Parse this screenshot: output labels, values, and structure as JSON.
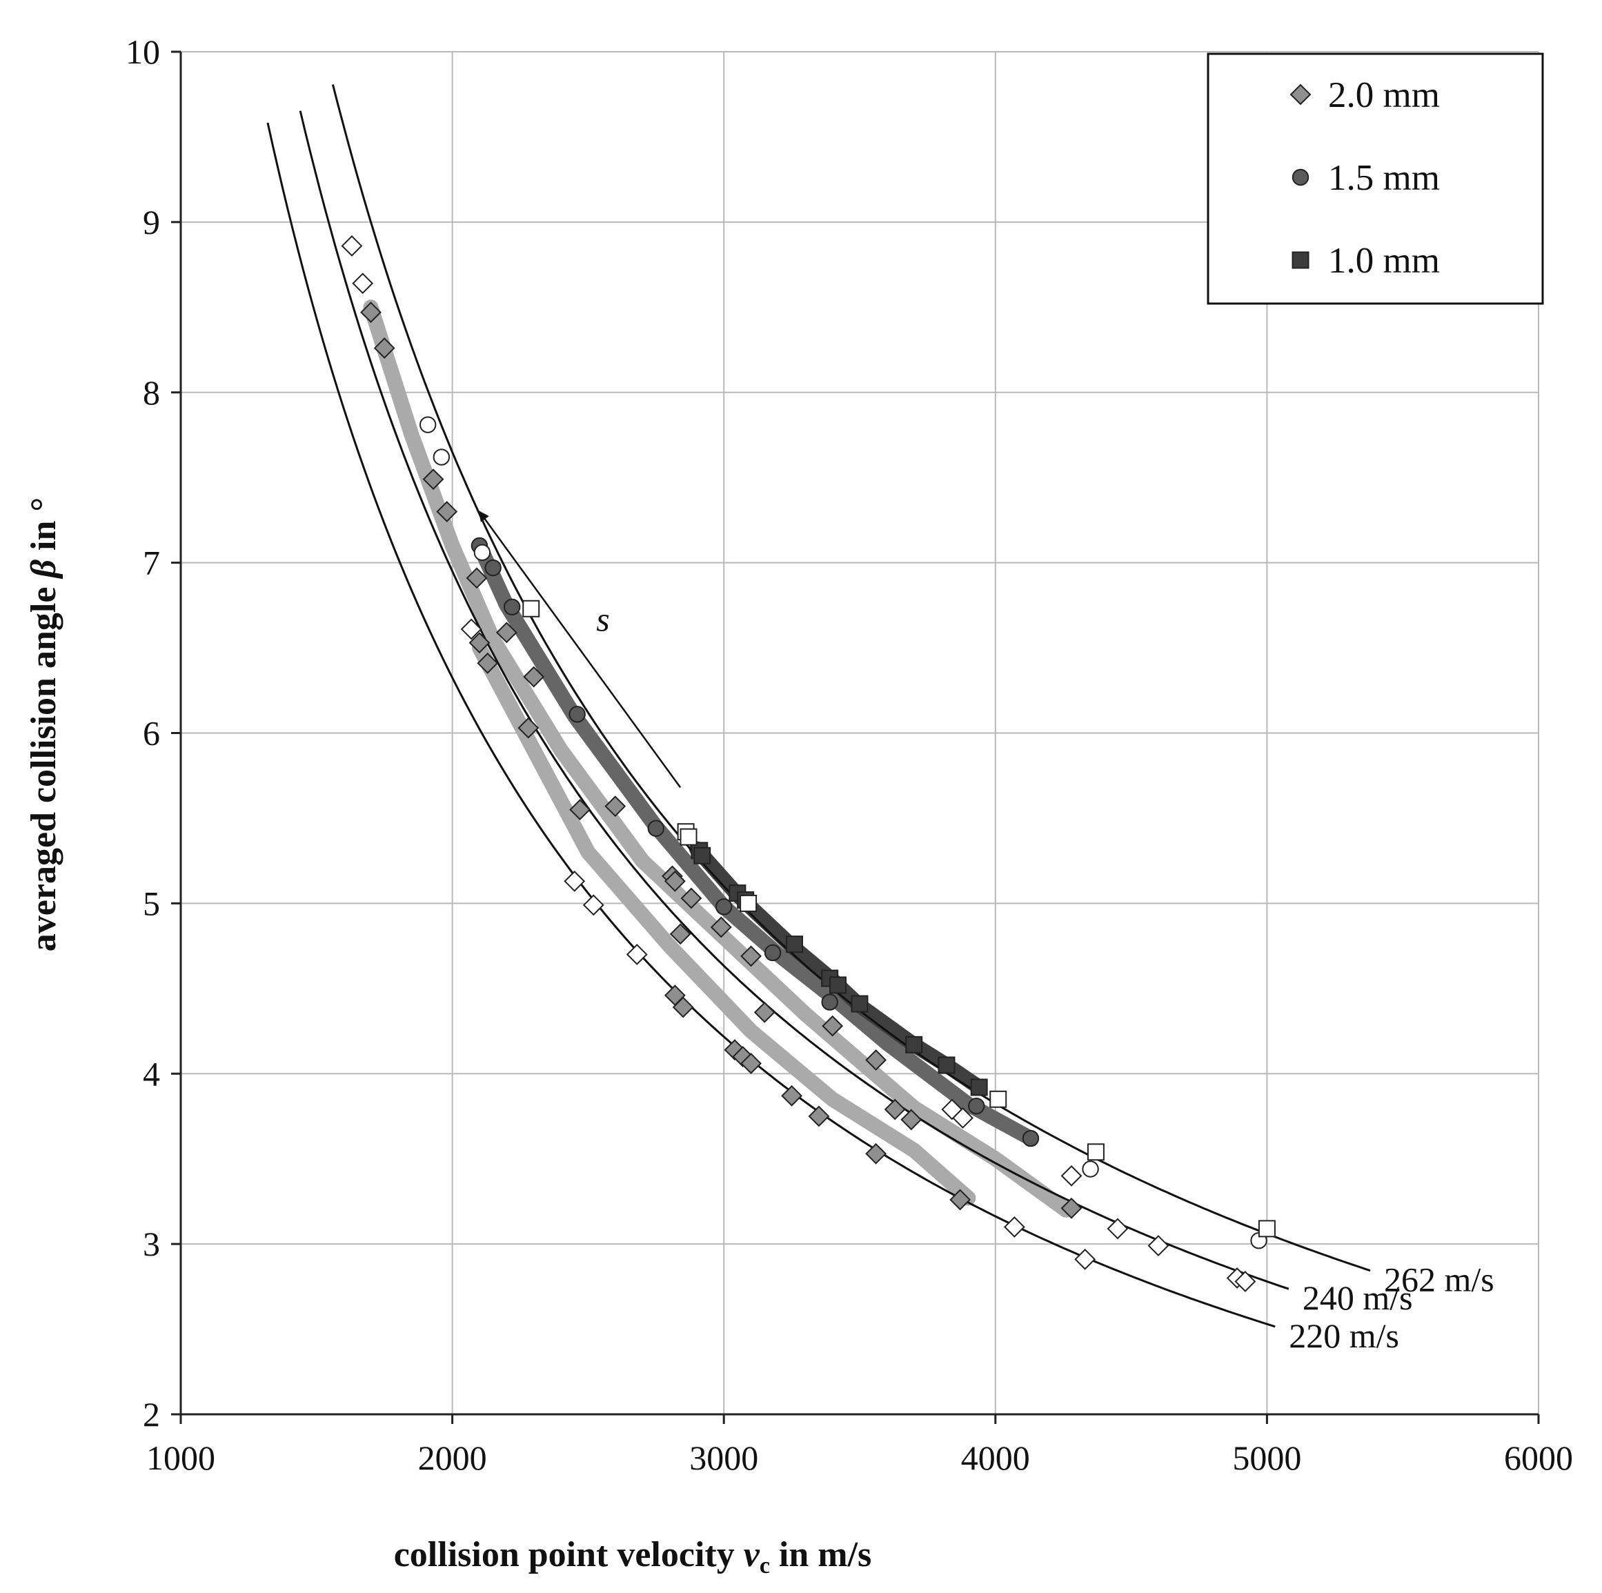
{
  "chart_data": {
    "type": "scatter",
    "title": "",
    "xlabel": {
      "prefix": "collision point velocity ",
      "symbol": "v",
      "subscript": "c",
      "suffix": " in m/s"
    },
    "ylabel": {
      "prefix": "averaged collision angle ",
      "symbol": "β",
      "suffix": " in °"
    },
    "xlim": [
      1000,
      6000
    ],
    "ylim": [
      2,
      10
    ],
    "xticks": [
      1000,
      2000,
      3000,
      4000,
      5000,
      6000
    ],
    "yticks": [
      2,
      3,
      4,
      5,
      6,
      7,
      8,
      9,
      10
    ],
    "grid": true,
    "legend_position": "top-right",
    "legend": [
      {
        "label": "2.0 mm",
        "marker": "diamond",
        "color": "#8f8f8f"
      },
      {
        "label": "1.5 mm",
        "marker": "circle",
        "color": "#5a5a5a"
      },
      {
        "label": "1.0 mm",
        "marker": "square",
        "color": "#3c3c3c"
      }
    ],
    "reference_curves": [
      {
        "label": "262 m/s",
        "k": 15300,
        "x_range": [
          1560,
          5380
        ]
      },
      {
        "label": "240 m/s",
        "k": 13900,
        "x_range": [
          1440,
          5080
        ]
      },
      {
        "label": "220 m/s",
        "k": 12650,
        "x_range": [
          1320,
          5030
        ]
      }
    ],
    "bands": [
      {
        "name": "2.0 mm (lower band)",
        "color": "#aaaaaa",
        "points": [
          [
            2100,
            6.5
          ],
          [
            2300,
            5.9
          ],
          [
            2500,
            5.3
          ],
          [
            2800,
            4.75
          ],
          [
            3100,
            4.25
          ],
          [
            3400,
            3.85
          ],
          [
            3700,
            3.55
          ],
          [
            3900,
            3.27
          ]
        ]
      },
      {
        "name": "2.0 mm (upper band)",
        "color": "#aaaaaa",
        "points": [
          [
            1700,
            8.5
          ],
          [
            1850,
            7.75
          ],
          [
            2000,
            7.1
          ],
          [
            2150,
            6.55
          ],
          [
            2400,
            5.9
          ],
          [
            2700,
            5.25
          ],
          [
            3000,
            4.8
          ],
          [
            3300,
            4.35
          ],
          [
            3700,
            3.8
          ],
          [
            4000,
            3.5
          ],
          [
            4260,
            3.2
          ]
        ]
      },
      {
        "name": "1.5 mm",
        "color": "#666666",
        "points": [
          [
            2100,
            7.1
          ],
          [
            2200,
            6.75
          ],
          [
            2450,
            6.1
          ],
          [
            2750,
            5.45
          ],
          [
            3000,
            4.98
          ],
          [
            3200,
            4.7
          ],
          [
            3400,
            4.45
          ],
          [
            3600,
            4.18
          ],
          [
            3900,
            3.82
          ],
          [
            4130,
            3.62
          ]
        ]
      },
      {
        "name": "1.0 mm",
        "color": "#3f3f3f",
        "points": [
          [
            2900,
            5.32
          ],
          [
            3050,
            5.05
          ],
          [
            3250,
            4.75
          ],
          [
            3400,
            4.55
          ],
          [
            3500,
            4.4
          ],
          [
            3700,
            4.17
          ],
          [
            3820,
            4.05
          ],
          [
            3940,
            3.92
          ]
        ]
      }
    ],
    "series": [
      {
        "name": "2.0 mm",
        "marker": "diamond",
        "color": "#8f8f8f",
        "points": [
          [
            1700,
            8.47
          ],
          [
            1750,
            8.26
          ],
          [
            1930,
            7.49
          ],
          [
            1980,
            7.3
          ],
          [
            2090,
            6.91
          ],
          [
            2200,
            6.59
          ],
          [
            2100,
            6.53
          ],
          [
            2130,
            6.41
          ],
          [
            2300,
            6.33
          ],
          [
            2280,
            6.03
          ],
          [
            2600,
            5.57
          ],
          [
            2470,
            5.55
          ],
          [
            2810,
            5.16
          ],
          [
            2820,
            5.13
          ],
          [
            2880,
            5.03
          ],
          [
            2990,
            4.86
          ],
          [
            2840,
            4.82
          ],
          [
            3100,
            4.69
          ],
          [
            3150,
            4.36
          ],
          [
            3400,
            4.28
          ],
          [
            3560,
            4.08
          ],
          [
            3630,
            3.79
          ],
          [
            3690,
            3.73
          ],
          [
            2820,
            4.46
          ],
          [
            2850,
            4.39
          ],
          [
            3040,
            4.14
          ],
          [
            3070,
            4.1
          ],
          [
            3100,
            4.06
          ],
          [
            3250,
            3.87
          ],
          [
            3350,
            3.75
          ],
          [
            3560,
            3.53
          ],
          [
            3870,
            3.26
          ],
          [
            4280,
            3.21
          ]
        ]
      },
      {
        "name": "2.0 mm (hollow)",
        "marker": "diamond",
        "color": "#ffffff",
        "points": [
          [
            1630,
            8.86
          ],
          [
            1670,
            8.64
          ],
          [
            2070,
            6.61
          ],
          [
            2450,
            5.13
          ],
          [
            2520,
            4.99
          ],
          [
            2680,
            4.7
          ],
          [
            3840,
            3.79
          ],
          [
            3880,
            3.74
          ],
          [
            4280,
            3.4
          ],
          [
            4450,
            3.09
          ],
          [
            4600,
            2.99
          ],
          [
            4070,
            3.1
          ],
          [
            4330,
            2.91
          ],
          [
            4890,
            2.8
          ],
          [
            4920,
            2.78
          ]
        ]
      },
      {
        "name": "1.5 mm",
        "marker": "circle",
        "color": "#5a5a5a",
        "points": [
          [
            2100,
            7.1
          ],
          [
            2150,
            6.97
          ],
          [
            2220,
            6.74
          ],
          [
            2460,
            6.11
          ],
          [
            2750,
            5.44
          ],
          [
            3000,
            4.98
          ],
          [
            3180,
            4.71
          ],
          [
            3390,
            4.42
          ],
          [
            3930,
            3.81
          ],
          [
            4130,
            3.62
          ]
        ]
      },
      {
        "name": "1.5 mm (hollow)",
        "marker": "circle",
        "color": "#ffffff",
        "points": [
          [
            1910,
            7.81
          ],
          [
            1960,
            7.62
          ],
          [
            2110,
            7.06
          ],
          [
            4350,
            3.44
          ],
          [
            4970,
            3.02
          ]
        ]
      },
      {
        "name": "1.0 mm",
        "marker": "square",
        "color": "#3c3c3c",
        "points": [
          [
            2910,
            5.31
          ],
          [
            2920,
            5.28
          ],
          [
            3050,
            5.06
          ],
          [
            3080,
            5.02
          ],
          [
            3260,
            4.76
          ],
          [
            3390,
            4.56
          ],
          [
            3420,
            4.52
          ],
          [
            3500,
            4.41
          ],
          [
            3700,
            4.17
          ],
          [
            3820,
            4.05
          ],
          [
            3940,
            3.92
          ]
        ]
      },
      {
        "name": "1.0 mm (hollow)",
        "marker": "square",
        "color": "#ffffff",
        "points": [
          [
            2290,
            6.73
          ],
          [
            2860,
            5.42
          ],
          [
            2870,
            5.39
          ],
          [
            3090,
            5.0
          ],
          [
            4010,
            3.85
          ],
          [
            4370,
            3.54
          ],
          [
            5000,
            3.09
          ]
        ]
      }
    ],
    "annotations": [
      {
        "text": "s",
        "at": [
          2530,
          6.6
        ]
      }
    ],
    "arrow": {
      "from": [
        2840,
        5.68
      ],
      "to": [
        2100,
        7.3
      ]
    }
  }
}
